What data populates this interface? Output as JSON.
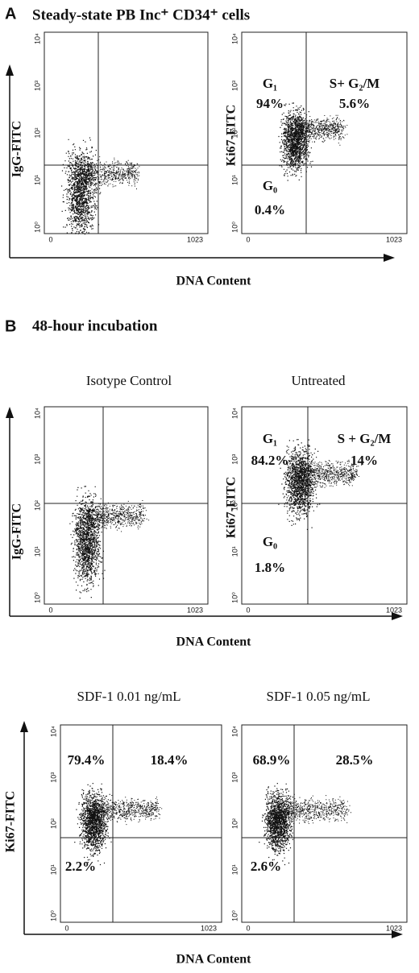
{
  "y_tick_labels": [
    "10⁰",
    "10¹",
    "10²",
    "10³",
    "10⁴"
  ],
  "x_tick_labels": [
    "0",
    "1023"
  ],
  "panels": [
    {
      "label": "A",
      "title": "Steady-state PB Inc⁺ CD34⁺ cells",
      "x_axis_label": "DNA Content",
      "plots": [
        {
          "y_axis_label": "IgG-FITC",
          "quadrants": []
        },
        {
          "y_axis_label": "Ki67-FITC",
          "quadrants": [
            "G₁",
            "94%",
            "S+ G₂/M",
            "5.6%",
            "G₀",
            "0.4%"
          ]
        }
      ]
    },
    {
      "label": "B",
      "title": "48-hour incubation",
      "x_axis_label": "DNA Content",
      "plots": [
        {
          "subtitle": "Isotype Control",
          "y_axis_label": "IgG-FITC",
          "quadrants": []
        },
        {
          "subtitle": "Untreated",
          "y_axis_label": "Ki67-FITC",
          "quadrants": [
            "G₁",
            "84.2%",
            "S + G₂/M",
            "14%",
            "G₀",
            "1.8%"
          ]
        }
      ]
    },
    {
      "x_axis_label": "DNA Content",
      "y_axis_label": "Ki67-FITC",
      "plots": [
        {
          "subtitle": "SDF-1 0.01 ng/mL",
          "quadrants": [
            "79.4%",
            "18.4%",
            "2.2%"
          ]
        },
        {
          "subtitle": "SDF-1 0.05 ng/mL",
          "quadrants": [
            "68.9%",
            "28.5%",
            "2.6%"
          ]
        }
      ]
    }
  ]
}
